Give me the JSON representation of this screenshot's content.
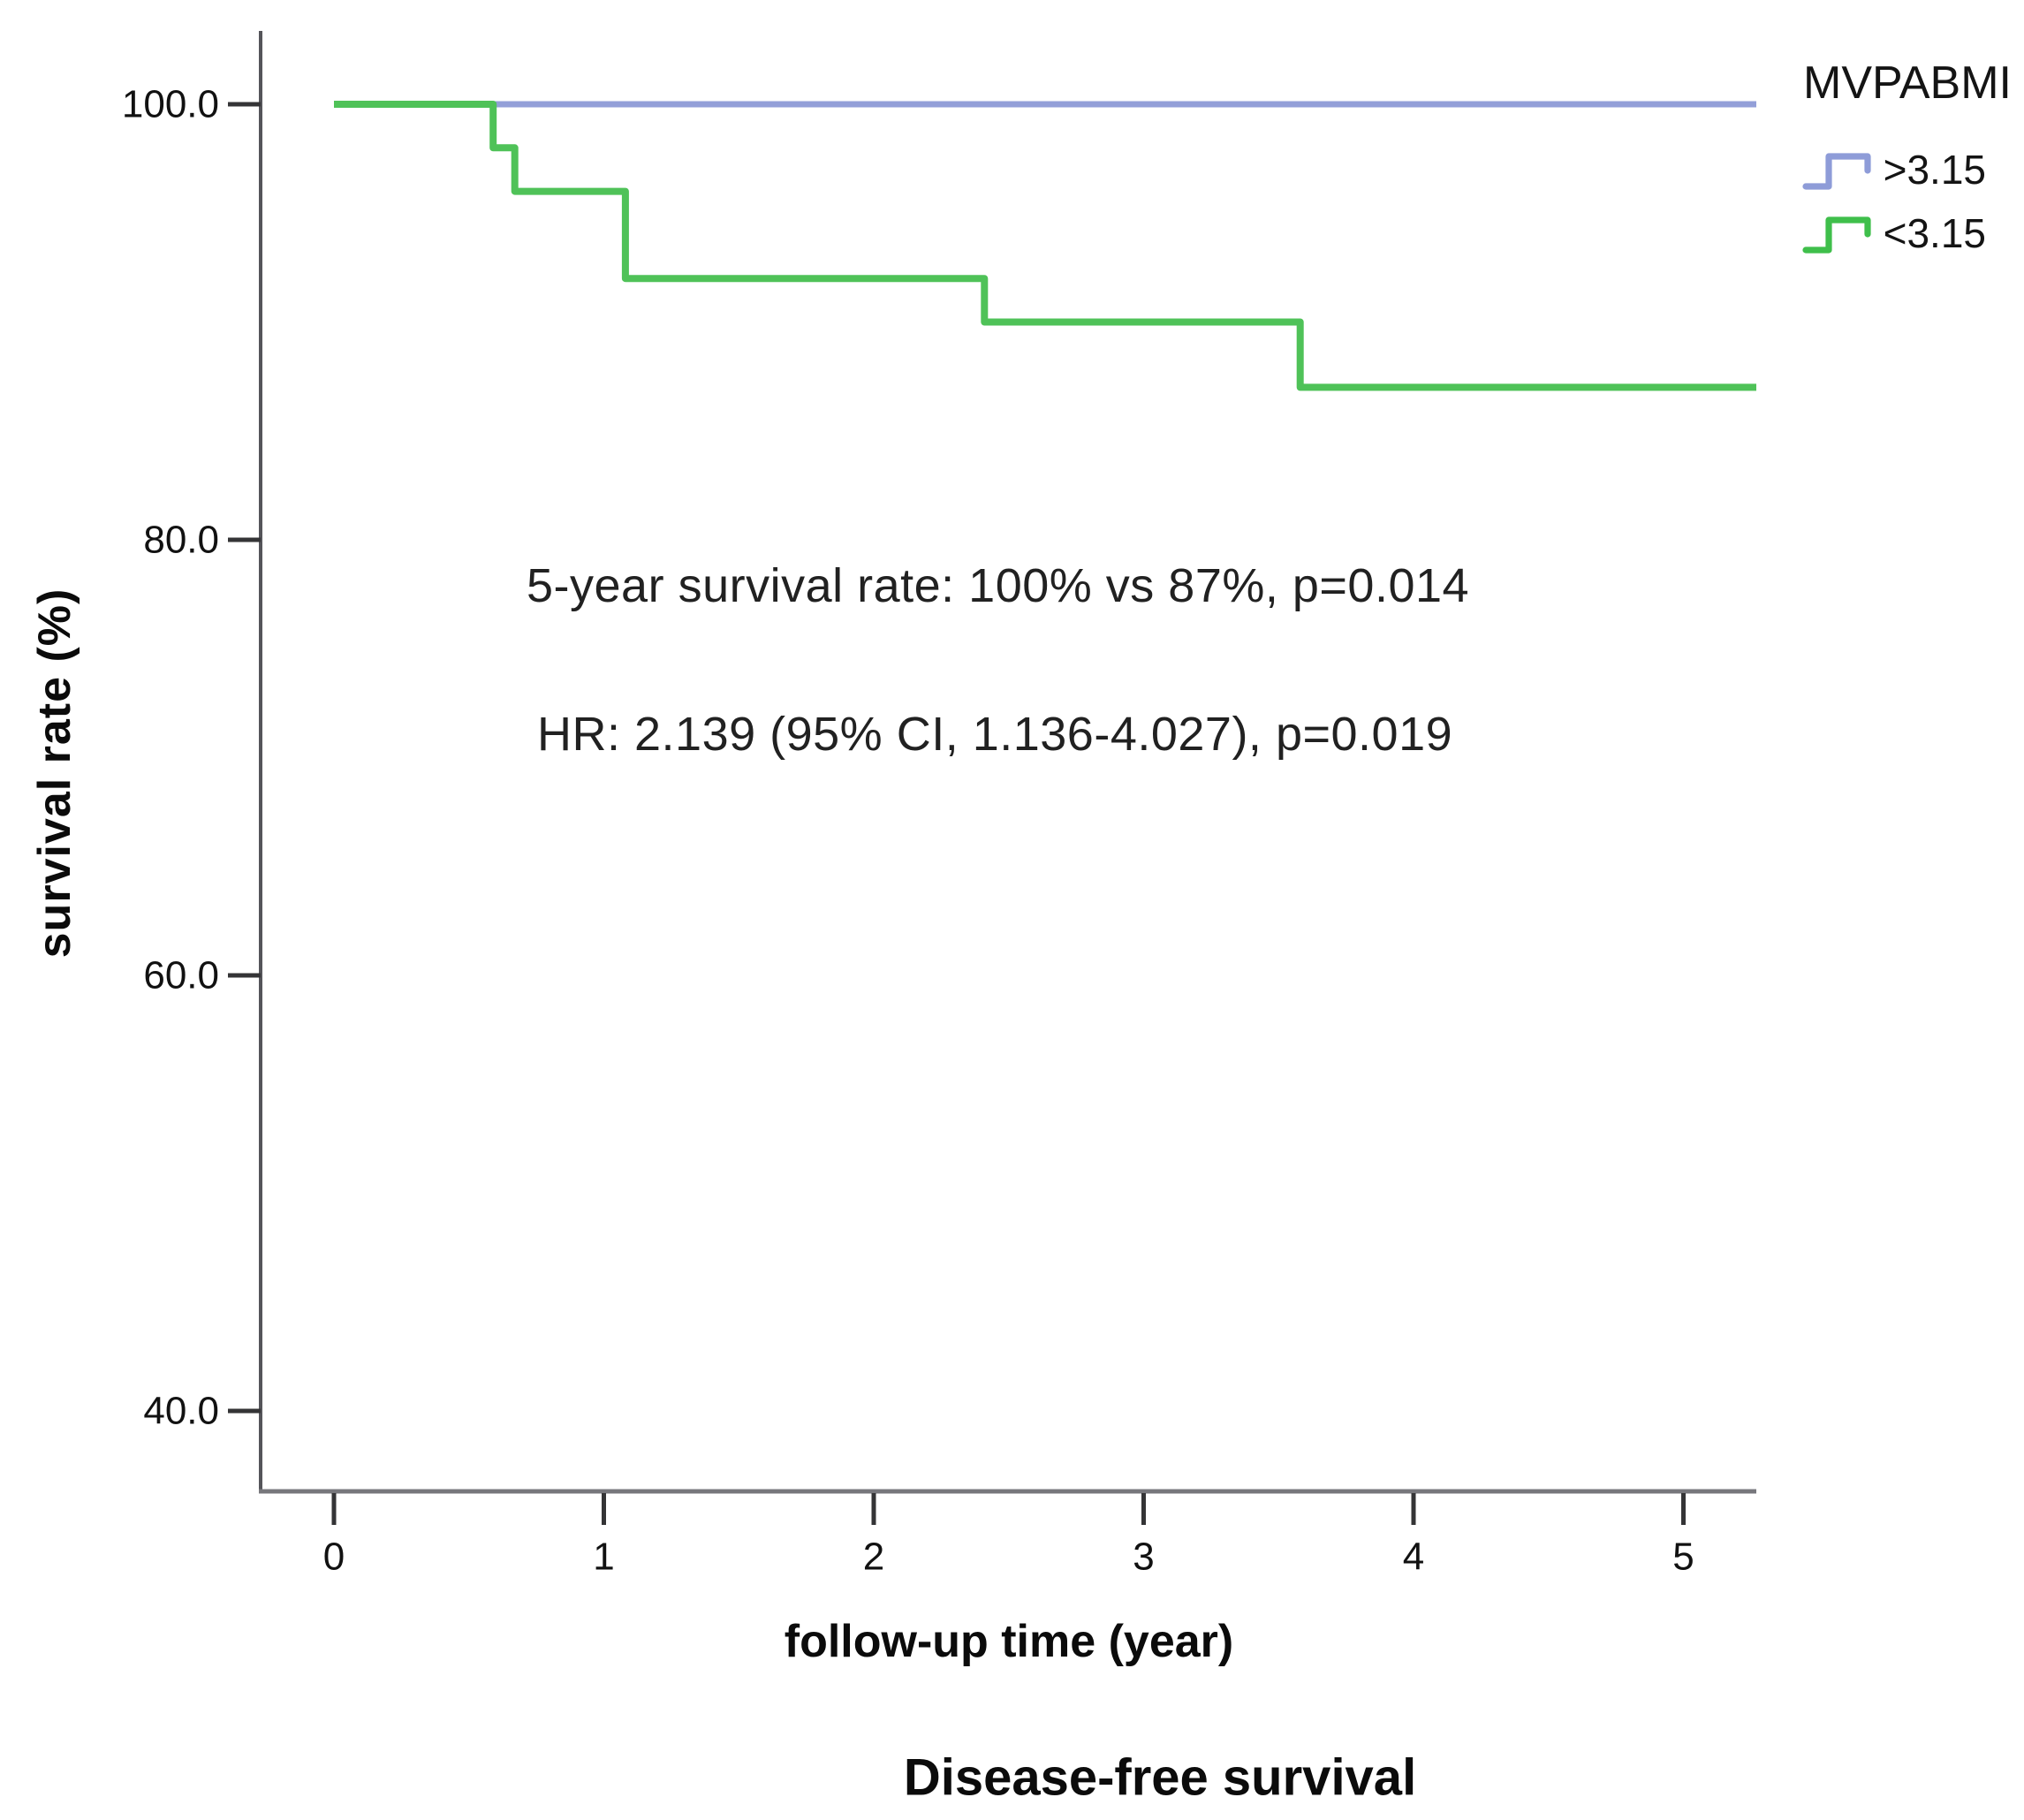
{
  "chart_data": {
    "type": "line",
    "subtype": "kaplan-meier-step",
    "title": "Disease-free survival",
    "xlabel": "follow-up time (year)",
    "ylabel": "survival rate (%)",
    "xlim": [
      0,
      5.27
    ],
    "ylim": [
      36,
      103
    ],
    "grid": false,
    "xticks": [
      {
        "value": 0,
        "label": "0"
      },
      {
        "value": 1,
        "label": "1"
      },
      {
        "value": 2,
        "label": "2"
      },
      {
        "value": 3,
        "label": "3"
      },
      {
        "value": 4,
        "label": "4"
      },
      {
        "value": 5,
        "label": "5"
      }
    ],
    "yticks": [
      {
        "value": 100,
        "label": "100.0"
      },
      {
        "value": 80,
        "label": "80.0"
      },
      {
        "value": 60,
        "label": "60.0"
      },
      {
        "value": 40,
        "label": "40.0"
      }
    ],
    "legend": {
      "title": "MVPABMI",
      "position": "top-right",
      "items": [
        {
          "label": ">3.15",
          "color": "#8e9cd8"
        },
        {
          "label": "<3.15",
          "color": "#3fbf4b"
        }
      ]
    },
    "annotations": [
      "5-year survival rate: 100% vs 87%, p=0.014",
      "HR: 2.139 (95% CI, 1.136-4.027), p=0.019"
    ],
    "series": [
      {
        "name": ">3.15",
        "color": "#939fd8",
        "t_end": 5.27,
        "steps": [
          {
            "t": 0,
            "s": 100
          }
        ]
      },
      {
        "name": "<3.15",
        "color": "#4fc258",
        "t_end": 5.27,
        "steps": [
          {
            "t": 0,
            "s": 100
          },
          {
            "t": 0.59,
            "s": 98
          },
          {
            "t": 0.67,
            "s": 96
          },
          {
            "t": 1.08,
            "s": 92
          },
          {
            "t": 2.41,
            "s": 90
          },
          {
            "t": 3.58,
            "s": 87
          }
        ]
      }
    ]
  }
}
